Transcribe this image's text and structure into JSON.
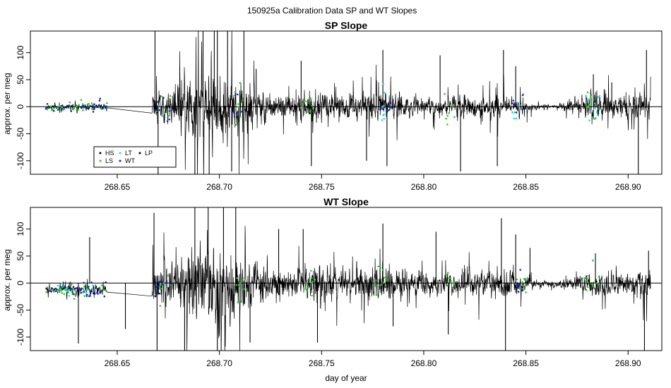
{
  "figure": {
    "main_title": "150925a   Calibration Data SP and WT Slopes",
    "xlabel": "day of year"
  },
  "chart_data": [
    {
      "type": "line",
      "title": "SP Slope",
      "ylabel": "approx. per meg",
      "xlim": [
        268.6075,
        268.9165
      ],
      "ylim": [
        -125,
        140
      ],
      "xticks": [
        "268.65",
        "268.70",
        "268.75",
        "268.80",
        "268.85",
        "268.90"
      ],
      "xtick_values": [
        268.65,
        268.7,
        268.75,
        268.8,
        268.85,
        268.9
      ],
      "yticks": [
        "-100",
        "-50",
        "0",
        "50",
        "100"
      ],
      "ytick_values": [
        -100,
        -50,
        0,
        50,
        100
      ],
      "reference_line_y": 0,
      "data_start": 268.615,
      "data_end": 268.911,
      "gap": [
        268.645,
        268.667
      ],
      "series": [
        {
          "name": "HS",
          "color": "#000000",
          "marker": "dot"
        },
        {
          "name": "LS",
          "color": "#22cc22",
          "marker": "dot"
        },
        {
          "name": "LT",
          "color": "#22dddd",
          "marker": "dot"
        },
        {
          "name": "WT",
          "color": "#1a1acc",
          "marker": "dot"
        },
        {
          "name": "LP",
          "color": "#000000",
          "marker": "dot"
        }
      ],
      "legend_position": "bottom-left",
      "envelope": [
        [
          268.615,
          8
        ],
        [
          268.632,
          9
        ],
        [
          268.645,
          9
        ],
        [
          268.667,
          35
        ],
        [
          268.678,
          60
        ],
        [
          268.685,
          85
        ],
        [
          268.695,
          120
        ],
        [
          268.7,
          110
        ],
        [
          268.708,
          80
        ],
        [
          268.72,
          45
        ],
        [
          268.735,
          28
        ],
        [
          268.745,
          45
        ],
        [
          268.76,
          30
        ],
        [
          268.78,
          45
        ],
        [
          268.795,
          28
        ],
        [
          268.805,
          22
        ],
        [
          268.815,
          25
        ],
        [
          268.83,
          35
        ],
        [
          268.845,
          22
        ],
        [
          268.855,
          8
        ],
        [
          268.865,
          5
        ],
        [
          268.875,
          25
        ],
        [
          268.885,
          40
        ],
        [
          268.895,
          30
        ],
        [
          268.911,
          35
        ]
      ],
      "spikes": [
        [
          268.6685,
          140
        ],
        [
          268.67,
          -125
        ],
        [
          268.688,
          -125
        ],
        [
          268.692,
          140
        ],
        [
          268.695,
          -125
        ],
        [
          268.6975,
          140
        ],
        [
          268.699,
          140
        ],
        [
          268.704,
          140
        ],
        [
          268.706,
          -120
        ],
        [
          268.712,
          140
        ],
        [
          268.718,
          70
        ],
        [
          268.74,
          85
        ],
        [
          268.745,
          -110
        ],
        [
          268.772,
          -100
        ],
        [
          268.78,
          105
        ],
        [
          268.782,
          -110
        ],
        [
          268.808,
          95
        ],
        [
          268.818,
          -120
        ],
        [
          268.836,
          -110
        ],
        [
          268.839,
          105
        ],
        [
          268.845,
          75
        ],
        [
          268.883,
          60
        ],
        [
          268.892,
          45
        ],
        [
          268.905,
          -125
        ],
        [
          268.909,
          105
        ]
      ],
      "colored_points": [
        {
          "x": [
            268.615,
            268.63
          ],
          "color": "#1a1acc",
          "count": 12
        },
        {
          "x": [
            268.615,
            268.645
          ],
          "color": "#22cc22",
          "count": 30
        },
        {
          "x": [
            268.632,
            268.645
          ],
          "color": "#1a1acc",
          "count": 18
        },
        {
          "x": [
            268.668,
            268.676
          ],
          "color": "#1a1acc",
          "count": 10
        },
        {
          "x": [
            268.668,
            268.676
          ],
          "color": "#22cc22",
          "count": 8
        },
        {
          "x": [
            268.706,
            268.712
          ],
          "color": "#22cc22",
          "count": 10
        },
        {
          "x": [
            268.706,
            268.712
          ],
          "color": "#1a1acc",
          "count": 6
        },
        {
          "x": [
            268.74,
            268.746
          ],
          "color": "#22cc22",
          "count": 10
        },
        {
          "x": [
            268.778,
            268.784
          ],
          "color": "#22dddd",
          "count": 10
        },
        {
          "x": [
            268.778,
            268.784
          ],
          "color": "#1a1acc",
          "count": 6
        },
        {
          "x": [
            268.81,
            268.815
          ],
          "color": "#22cc22",
          "count": 8
        },
        {
          "x": [
            268.843,
            268.85
          ],
          "color": "#22dddd",
          "count": 8
        },
        {
          "x": [
            268.843,
            268.85
          ],
          "color": "#1a1acc",
          "count": 6
        },
        {
          "x": [
            268.878,
            268.886
          ],
          "color": "#22dddd",
          "count": 12
        },
        {
          "x": [
            268.878,
            268.886
          ],
          "color": "#22cc22",
          "count": 10
        }
      ]
    },
    {
      "type": "line",
      "title": "WT Slope",
      "ylabel": "approx. per meg",
      "xlim": [
        268.6075,
        268.9165
      ],
      "ylim": [
        -125,
        140
      ],
      "xticks": [
        "268.65",
        "268.70",
        "268.75",
        "268.80",
        "268.85",
        "268.90"
      ],
      "xtick_values": [
        268.65,
        268.7,
        268.75,
        268.8,
        268.85,
        268.9
      ],
      "yticks": [
        "-100",
        "-50",
        "0",
        "50",
        "100"
      ],
      "ytick_values": [
        -100,
        -50,
        0,
        50,
        100
      ],
      "reference_line_y": 0,
      "data_start": 268.615,
      "data_end": 268.911,
      "gap": [
        268.645,
        268.667
      ],
      "baseline": -12,
      "envelope": [
        [
          268.615,
          8
        ],
        [
          268.632,
          12
        ],
        [
          268.645,
          12
        ],
        [
          268.667,
          40
        ],
        [
          268.68,
          70
        ],
        [
          268.688,
          110
        ],
        [
          268.695,
          135
        ],
        [
          268.702,
          120
        ],
        [
          268.71,
          90
        ],
        [
          268.72,
          55
        ],
        [
          268.735,
          35
        ],
        [
          268.745,
          50
        ],
        [
          268.76,
          40
        ],
        [
          268.78,
          50
        ],
        [
          268.795,
          35
        ],
        [
          268.805,
          30
        ],
        [
          268.815,
          30
        ],
        [
          268.83,
          45
        ],
        [
          268.84,
          45
        ],
        [
          268.855,
          10
        ],
        [
          268.865,
          8
        ],
        [
          268.875,
          25
        ],
        [
          268.885,
          40
        ],
        [
          268.895,
          30
        ],
        [
          268.911,
          45
        ]
      ],
      "spikes": [
        [
          268.6365,
          85
        ],
        [
          268.631,
          -112
        ],
        [
          268.654,
          -85
        ],
        [
          268.668,
          130
        ],
        [
          268.6695,
          -125
        ],
        [
          268.683,
          -125
        ],
        [
          268.688,
          140
        ],
        [
          268.6945,
          140
        ],
        [
          268.699,
          -125
        ],
        [
          268.702,
          140
        ],
        [
          268.708,
          140
        ],
        [
          268.715,
          -110
        ],
        [
          268.729,
          100
        ],
        [
          268.741,
          100
        ],
        [
          268.748,
          -110
        ],
        [
          268.78,
          110
        ],
        [
          268.785,
          -80
        ],
        [
          268.806,
          95
        ],
        [
          268.812,
          -95
        ],
        [
          268.838,
          120
        ],
        [
          268.84,
          -125
        ],
        [
          268.845,
          90
        ],
        [
          268.852,
          65
        ],
        [
          268.884,
          55
        ],
        [
          268.908,
          -125
        ],
        [
          268.91,
          60
        ]
      ],
      "colored_points": [
        {
          "x": [
            268.615,
            268.63
          ],
          "color": "#1a1acc",
          "count": 12
        },
        {
          "x": [
            268.615,
            268.645
          ],
          "color": "#22cc22",
          "count": 30
        },
        {
          "x": [
            268.62,
            268.64
          ],
          "color": "#22dddd",
          "count": 14
        },
        {
          "x": [
            268.632,
            268.645
          ],
          "color": "#1a1acc",
          "count": 18
        },
        {
          "x": [
            268.668,
            268.676
          ],
          "color": "#1a1acc",
          "count": 10
        },
        {
          "x": [
            268.668,
            268.676
          ],
          "color": "#22cc22",
          "count": 8
        },
        {
          "x": [
            268.708,
            268.714
          ],
          "color": "#22cc22",
          "count": 10
        },
        {
          "x": [
            268.742,
            268.748
          ],
          "color": "#22cc22",
          "count": 10
        },
        {
          "x": [
            268.776,
            268.784
          ],
          "color": "#22cc22",
          "count": 12
        },
        {
          "x": [
            268.81,
            268.815
          ],
          "color": "#22cc22",
          "count": 8
        },
        {
          "x": [
            268.843,
            268.85
          ],
          "color": "#22cc22",
          "count": 8
        },
        {
          "x": [
            268.843,
            268.85
          ],
          "color": "#1a1acc",
          "count": 6
        },
        {
          "x": [
            268.878,
            268.886
          ],
          "color": "#22cc22",
          "count": 12
        }
      ]
    }
  ]
}
